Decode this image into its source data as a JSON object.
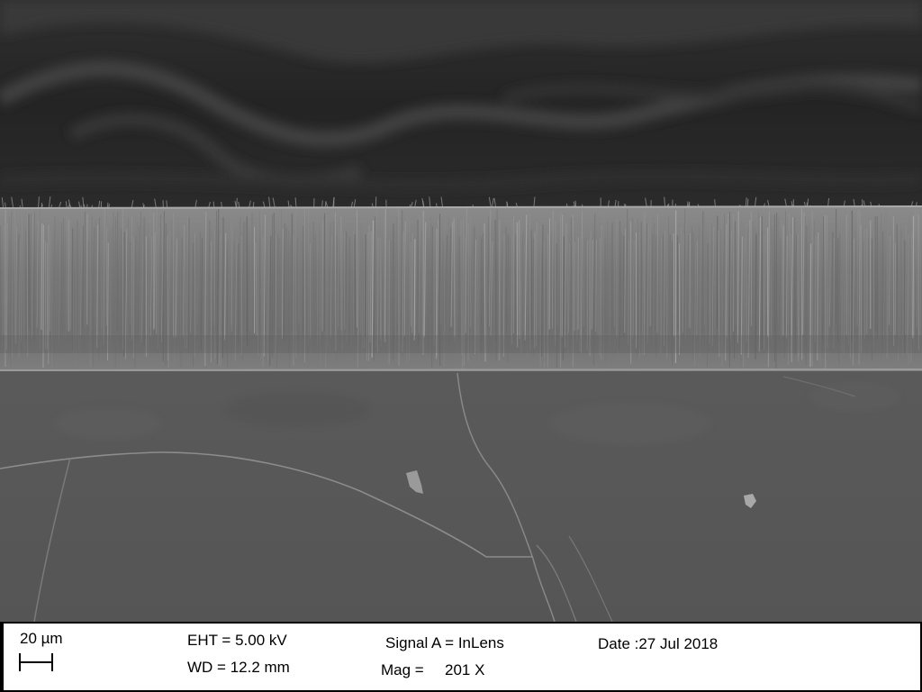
{
  "scale_bar": {
    "label": "20 µm"
  },
  "parameters": {
    "eht": "EHT =  5.00 kV",
    "wd": "WD = 12.2 mm",
    "signal": "Signal A = InLens",
    "mag_label": "Mag =",
    "mag_value": "201 X",
    "date": "Date :27 Jul 2018"
  },
  "colors": {
    "background_top": "#2a2a2a",
    "nanowire_layer": "#7d7d7d",
    "substrate": "#585858",
    "info_bar": "#ffffff"
  }
}
